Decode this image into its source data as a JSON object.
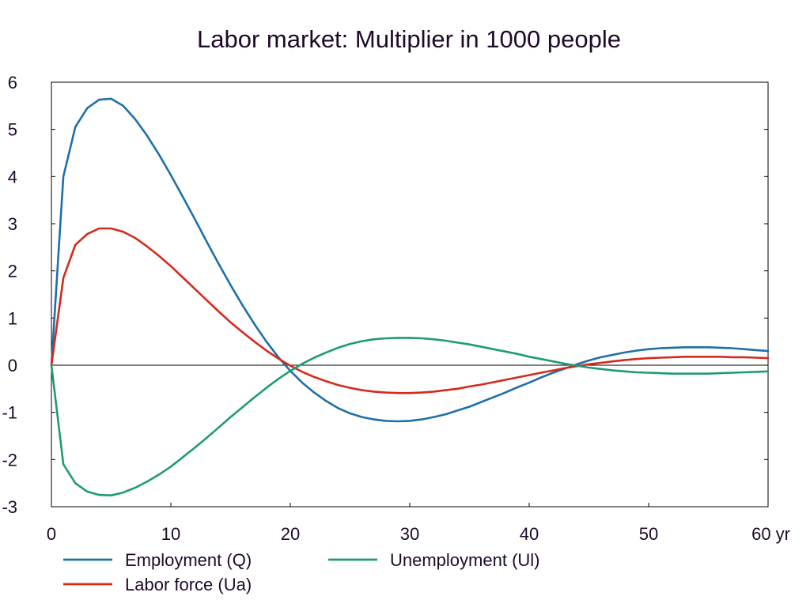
{
  "chart_data": {
    "type": "line",
    "title": "Labor market: Multiplier in 1000 people",
    "xlabel": "",
    "ylabel": "",
    "xlim": [
      0,
      60
    ],
    "ylim": [
      -3,
      6
    ],
    "x_ticks": [
      {
        "value": 0,
        "label": "0"
      },
      {
        "value": 10,
        "label": "10"
      },
      {
        "value": 20,
        "label": "20"
      },
      {
        "value": 30,
        "label": "30"
      },
      {
        "value": 40,
        "label": "40"
      },
      {
        "value": 50,
        "label": "50"
      },
      {
        "value": 60,
        "label": "60 yr"
      }
    ],
    "y_ticks": [
      {
        "value": 6,
        "label": "6"
      },
      {
        "value": 5,
        "label": "5"
      },
      {
        "value": 4,
        "label": "4"
      },
      {
        "value": 3,
        "label": "3"
      },
      {
        "value": 2,
        "label": "2"
      },
      {
        "value": 1,
        "label": "1"
      },
      {
        "value": 0,
        "label": "0"
      },
      {
        "value": -1,
        "label": "-1"
      },
      {
        "value": -2,
        "label": "-2"
      },
      {
        "value": -3,
        "label": "-3"
      }
    ],
    "grid": false,
    "legend_position": "bottom",
    "x": [
      0,
      1,
      2,
      3,
      4,
      5,
      6,
      7,
      8,
      9,
      10,
      11,
      12,
      13,
      14,
      15,
      16,
      17,
      18,
      19,
      20,
      21,
      22,
      23,
      24,
      25,
      26,
      27,
      28,
      29,
      30,
      31,
      32,
      33,
      34,
      35,
      36,
      37,
      38,
      39,
      40,
      41,
      42,
      43,
      44,
      45,
      46,
      47,
      48,
      49,
      50,
      51,
      52,
      53,
      54,
      55,
      56,
      57,
      58,
      59,
      60
    ],
    "series": [
      {
        "name": "Employment (Q)",
        "color": "#1f6fa8",
        "values": [
          0,
          4.0,
          5.05,
          5.45,
          5.63,
          5.65,
          5.5,
          5.22,
          4.87,
          4.47,
          4.03,
          3.57,
          3.1,
          2.62,
          2.15,
          1.7,
          1.27,
          0.87,
          0.5,
          0.17,
          -0.12,
          -0.37,
          -0.58,
          -0.76,
          -0.91,
          -1.02,
          -1.1,
          -1.15,
          -1.18,
          -1.19,
          -1.18,
          -1.15,
          -1.1,
          -1.04,
          -0.96,
          -0.88,
          -0.78,
          -0.68,
          -0.58,
          -0.47,
          -0.37,
          -0.26,
          -0.16,
          -0.07,
          0.02,
          0.1,
          0.17,
          0.22,
          0.27,
          0.31,
          0.34,
          0.36,
          0.37,
          0.38,
          0.38,
          0.38,
          0.37,
          0.36,
          0.34,
          0.32,
          0.3
        ]
      },
      {
        "name": "Labor force (Ua)",
        "color": "#d42a1c",
        "values": [
          0,
          1.85,
          2.55,
          2.78,
          2.9,
          2.9,
          2.83,
          2.7,
          2.52,
          2.32,
          2.1,
          1.86,
          1.62,
          1.38,
          1.14,
          0.91,
          0.7,
          0.5,
          0.31,
          0.14,
          -0.01,
          -0.14,
          -0.25,
          -0.34,
          -0.42,
          -0.48,
          -0.53,
          -0.56,
          -0.58,
          -0.59,
          -0.59,
          -0.58,
          -0.56,
          -0.53,
          -0.5,
          -0.45,
          -0.41,
          -0.36,
          -0.31,
          -0.26,
          -0.21,
          -0.16,
          -0.11,
          -0.06,
          -0.02,
          0.02,
          0.05,
          0.08,
          0.11,
          0.13,
          0.15,
          0.16,
          0.17,
          0.18,
          0.18,
          0.18,
          0.18,
          0.17,
          0.17,
          0.16,
          0.15
        ]
      },
      {
        "name": "Unemployment (Ul)",
        "color": "#1f9a78",
        "values": [
          0,
          -2.1,
          -2.5,
          -2.68,
          -2.75,
          -2.76,
          -2.7,
          -2.6,
          -2.47,
          -2.32,
          -2.15,
          -1.95,
          -1.75,
          -1.54,
          -1.32,
          -1.1,
          -0.89,
          -0.68,
          -0.48,
          -0.29,
          -0.12,
          0.03,
          0.16,
          0.27,
          0.37,
          0.45,
          0.51,
          0.55,
          0.57,
          0.58,
          0.58,
          0.57,
          0.55,
          0.52,
          0.48,
          0.44,
          0.39,
          0.34,
          0.29,
          0.24,
          0.18,
          0.13,
          0.08,
          0.03,
          -0.01,
          -0.05,
          -0.08,
          -0.11,
          -0.13,
          -0.15,
          -0.16,
          -0.17,
          -0.18,
          -0.18,
          -0.18,
          -0.18,
          -0.17,
          -0.16,
          -0.15,
          -0.14,
          -0.13
        ]
      }
    ],
    "legend": [
      {
        "series": 0,
        "label": "Employment (Q)"
      },
      {
        "series": 2,
        "label": "Unemployment (Ul)"
      },
      {
        "series": 1,
        "label": "Labor force (Ua)"
      }
    ]
  }
}
